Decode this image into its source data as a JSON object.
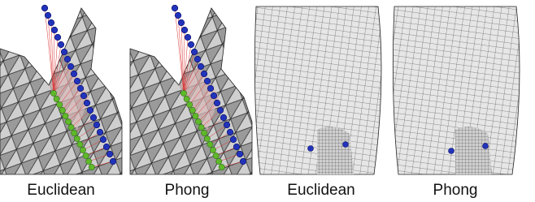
{
  "figure": {
    "panels": [
      {
        "caption": "Euclidean"
      },
      {
        "caption": "Phong"
      },
      {
        "caption": "Euclidean"
      },
      {
        "caption": "Phong"
      }
    ]
  }
}
